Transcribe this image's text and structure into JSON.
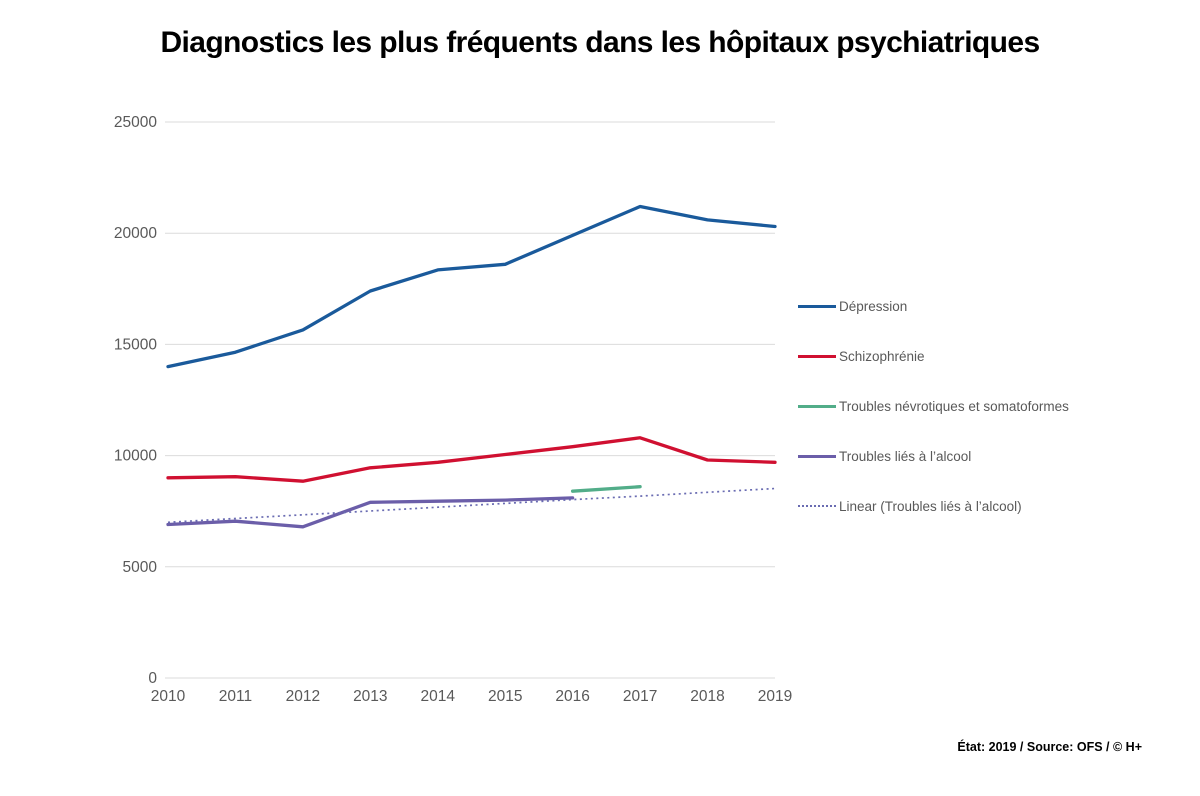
{
  "title": "Diagnostics les plus fréquents dans les hôpitaux psychiatriques",
  "source_note": "État: 2019 / Source: OFS / © H+",
  "colors": {
    "gridline": "#dbdbdb",
    "axis_text": "#595959",
    "title_text": "#000000"
  },
  "chart_data": {
    "type": "line",
    "x": [
      2010,
      2011,
      2012,
      2013,
      2014,
      2015,
      2016,
      2017,
      2018,
      2019
    ],
    "series": [
      {
        "name": "Dépression",
        "color": "#1a5a9b",
        "dotted": false,
        "values": [
          14000,
          14650,
          15650,
          17400,
          18350,
          18600,
          19900,
          21200,
          20600,
          20300
        ]
      },
      {
        "name": "Schizophrénie",
        "color": "#d01031",
        "dotted": false,
        "values": [
          9000,
          9050,
          8850,
          9450,
          9700,
          10050,
          10400,
          10800,
          9800,
          9700
        ]
      },
      {
        "name": "Troubles névrotiques et somatoformes",
        "color": "#52ad89",
        "dotted": false,
        "values": [
          null,
          null,
          null,
          null,
          null,
          null,
          8400,
          8600,
          null,
          null
        ]
      },
      {
        "name": "Troubles liés à l’alcool",
        "color": "#6b5ea9",
        "dotted": false,
        "values": [
          6900,
          7050,
          6800,
          7900,
          7950,
          8000,
          8100,
          null,
          null,
          null
        ]
      },
      {
        "name": "Linear (Troubles liés à l’alcool)",
        "color": "#6a6cb2",
        "dotted": true,
        "values": [
          7000,
          7170,
          7340,
          7510,
          7680,
          7850,
          8020,
          8180,
          8350,
          8520
        ]
      }
    ],
    "ylim": [
      0,
      25000
    ],
    "yticks": [
      0,
      5000,
      10000,
      15000,
      20000,
      25000
    ],
    "xlabel": "",
    "ylabel": "",
    "grid": "horizontal",
    "legend_position": "right"
  }
}
